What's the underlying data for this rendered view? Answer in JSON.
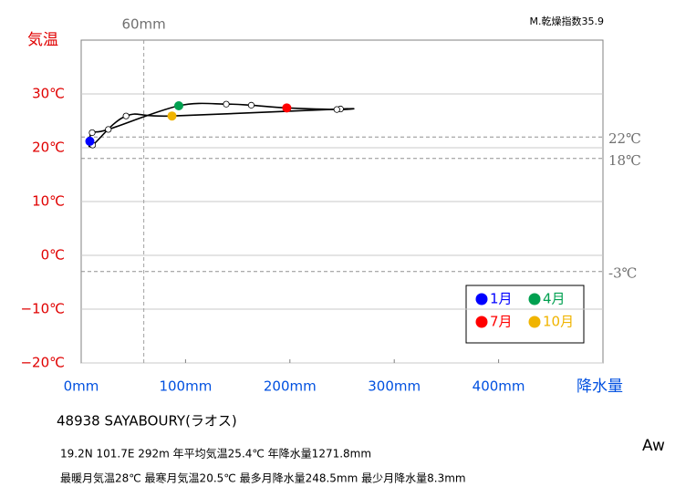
{
  "chart_data": {
    "type": "line",
    "annotation": "M.乾燥指数35.9",
    "x": [
      8.3,
      10.5,
      26,
      93.5,
      139,
      163,
      197,
      245,
      248.5,
      87,
      43,
      11
    ],
    "values": [
      21.2,
      22.8,
      23.4,
      27.8,
      28.1,
      27.9,
      27.4,
      27.1,
      27.2,
      25.9,
      25.9,
      20.5
    ],
    "line_color": "#000000",
    "point_colors": [
      "#0000ff",
      "#ffffff",
      "#ffffff",
      "#00a050",
      "#ffffff",
      "#ffffff",
      "#ff0000",
      "#ffffff",
      "#ffffff",
      "#f0b400",
      "#ffffff",
      "#ffffff"
    ],
    "legend": [
      {
        "name": "1月",
        "color": "#0000ff"
      },
      {
        "name": "4月",
        "color": "#00a050"
      },
      {
        "name": "7月",
        "color": "#ff0000"
      },
      {
        "name": "10月",
        "color": "#f0b400"
      }
    ],
    "x_label": "降水量",
    "y_label": "気温",
    "xlim": [
      0,
      500
    ],
    "ylim": [
      -20,
      40
    ],
    "xticks": [
      {
        "value": 0,
        "label": "0mm"
      },
      {
        "value": 100,
        "label": "100mm"
      },
      {
        "value": 200,
        "label": "200mm"
      },
      {
        "value": 300,
        "label": "300mm"
      },
      {
        "value": 400,
        "label": "400mm"
      }
    ],
    "yticks": [
      {
        "value": -20,
        "label": "−20℃"
      },
      {
        "value": -10,
        "label": "−10℃"
      },
      {
        "value": 0,
        "label": "0℃"
      },
      {
        "value": 10,
        "label": "10℃"
      },
      {
        "value": 20,
        "label": "20℃"
      },
      {
        "value": 30,
        "label": "30℃"
      }
    ],
    "grid": true,
    "ref_lines": [
      {
        "value": 22,
        "label": "22℃"
      },
      {
        "value": 18,
        "label": "18℃"
      },
      {
        "value": -3,
        "label": "-3℃"
      }
    ],
    "x_ref_lines": [
      {
        "value": 60,
        "label": "60mm"
      }
    ]
  },
  "station": "48938  SAYABOURY(ラオス)",
  "climate": "Aw",
  "info": [
    "19.2N  101.7E 292m  年平均気温25.4℃ 年降水量1271.8mm",
    "最暖月気温28℃ 最寒月気温20.5℃ 最多月降水量248.5mm 最少月降水量8.3mm"
  ]
}
